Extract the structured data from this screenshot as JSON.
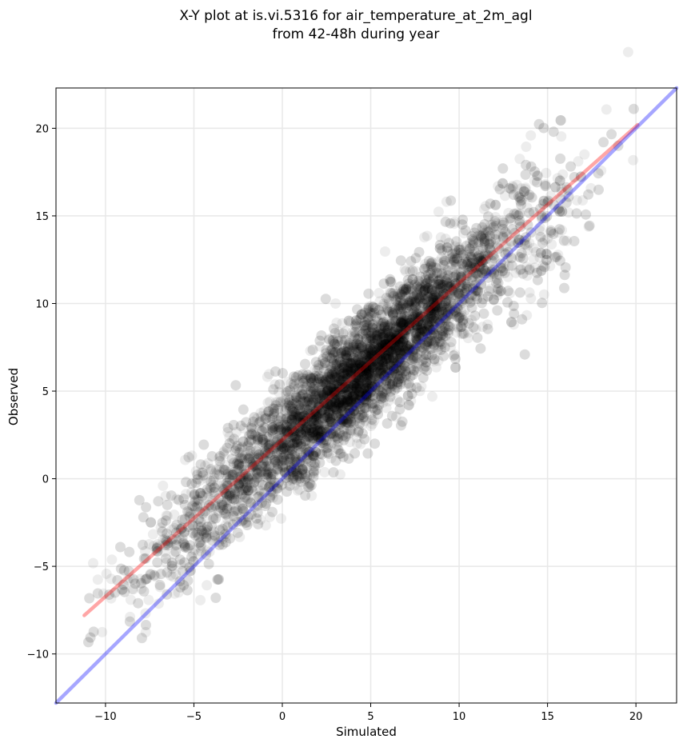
{
  "chart_data": {
    "type": "scatter",
    "title": "X-Y plot at is.vi.5316 for air_temperature_at_2m_agl",
    "subtitle": "from 42-48h during year",
    "xlabel": "Simulated",
    "ylabel": "Observed",
    "xlim": [
      -12.8,
      22.3
    ],
    "ylim": [
      -12.8,
      22.3
    ],
    "xticks": [
      -10,
      -5,
      0,
      5,
      10,
      15,
      20
    ],
    "yticks": [
      -10,
      -5,
      0,
      5,
      10,
      15,
      20
    ],
    "xtick_labels": [
      "−10",
      "−5",
      "0",
      "5",
      "10",
      "15",
      "20"
    ],
    "ytick_labels": [
      "−10",
      "−5",
      "0",
      "5",
      "10",
      "15",
      "20"
    ],
    "grid": true,
    "marker_color": "#000000",
    "marker_alpha": 0.07,
    "points_description_count": 6000,
    "point_distribution": {
      "x_range": [
        -11,
        20
      ],
      "relation": "observed ≈ 0.9 × simulated + 2.0 with spread ≈ 1.6",
      "dense_core": [
        [
          0,
          2
        ],
        [
          2,
          4
        ],
        [
          5,
          6.5
        ],
        [
          8,
          9.5
        ]
      ]
    },
    "series": [
      {
        "kind": "line",
        "color": "#ff0000",
        "alpha": 0.35,
        "x": [
          -11.2,
          20.1
        ],
        "y": [
          -7.8,
          20.2
        ]
      },
      {
        "kind": "line",
        "color": "#0000ff",
        "alpha": 0.35,
        "x": [
          -12.8,
          22.3
        ],
        "y": [
          -12.8,
          22.3
        ]
      }
    ]
  }
}
